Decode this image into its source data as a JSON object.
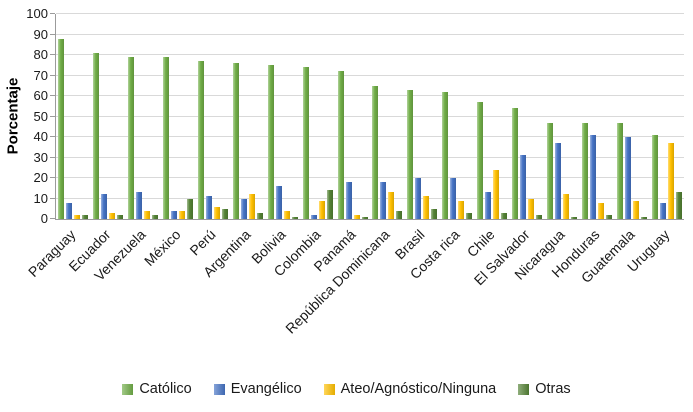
{
  "chart_data": {
    "type": "bar",
    "title": "",
    "xlabel": "",
    "ylabel": "Porcentaje",
    "ylim": [
      0,
      100
    ],
    "ytick_step": 10,
    "grid": true,
    "legend_position": "bottom",
    "categories": [
      "Paraguay",
      "Ecuador",
      "Venezuela",
      "México",
      "Perú",
      "Argentina",
      "Bolivia",
      "Colombia",
      "Panamá",
      "República Dominicana",
      "Brasil",
      "Costa rica",
      "Chile",
      "El Salvador",
      "Nicaragua",
      "Honduras",
      "Guatemala",
      "Uruguay"
    ],
    "series": [
      {
        "name": "Católico",
        "color": "#70AD47",
        "values": [
          88,
          81,
          79,
          79,
          77,
          76,
          75,
          74,
          72,
          65,
          63,
          62,
          57,
          54,
          47,
          47,
          47,
          41
        ]
      },
      {
        "name": "Evangélico",
        "color": "#4472C4",
        "values": [
          8,
          12,
          13,
          4,
          11,
          10,
          16,
          2,
          18,
          18,
          20,
          20,
          13,
          31,
          37,
          41,
          40,
          8
        ]
      },
      {
        "name": "Ateo/Agnóstico/Ninguna",
        "color": "#FFC000",
        "values": [
          2,
          3,
          4,
          4,
          6,
          12,
          4,
          9,
          2,
          13,
          11,
          9,
          24,
          10,
          12,
          8,
          9,
          37
        ]
      },
      {
        "name": "Otras",
        "color": "#548235",
        "values": [
          2,
          2,
          2,
          10,
          5,
          3,
          1,
          14,
          1,
          4,
          5,
          3,
          3,
          2,
          1,
          2,
          1,
          13
        ]
      }
    ]
  }
}
